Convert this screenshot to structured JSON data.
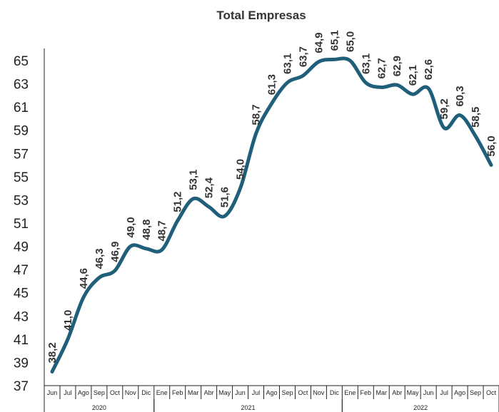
{
  "chart_data": {
    "type": "line",
    "title": "Total Empresas",
    "xlabel": "",
    "ylabel": "",
    "ylim": [
      37,
      65
    ],
    "yticks": [
      "37",
      "39",
      "41",
      "43",
      "45",
      "47",
      "49",
      "51",
      "53",
      "55",
      "57",
      "59",
      "61",
      "63",
      "65"
    ],
    "categories": [
      "Jun",
      "Jul",
      "Ago",
      "Sep",
      "Oct",
      "Nov",
      "Dic",
      "Ene",
      "Feb",
      "Mar",
      "Abr",
      "May",
      "Jun",
      "Jul",
      "Ago",
      "Sep",
      "Oct",
      "Nov",
      "Dic",
      "Ene",
      "Feb",
      "Mar",
      "Abr",
      "May",
      "Jun",
      "Jul",
      "Ago",
      "Sep",
      "Oct"
    ],
    "years": [
      {
        "label": "2020",
        "start": 0,
        "end": 6
      },
      {
        "label": "2021",
        "start": 7,
        "end": 18
      },
      {
        "label": "2022",
        "start": 19,
        "end": 28
      }
    ],
    "series": [
      {
        "values": [
          38.2,
          41.0,
          44.6,
          46.3,
          46.9,
          49.0,
          48.8,
          48.7,
          51.2,
          53.1,
          52.4,
          51.6,
          54.0,
          58.7,
          61.3,
          63.1,
          63.7,
          64.9,
          65.1,
          65.0,
          63.1,
          62.7,
          62.9,
          62.1,
          62.6,
          59.2,
          60.3,
          58.5,
          56.0
        ],
        "labels": [
          "38,2",
          "41,0",
          "44,6",
          "46,3",
          "46,9",
          "49,0",
          "48,8",
          "48,7",
          "51,2",
          "53,1",
          "52,4",
          "51,6",
          "54,0",
          "58,7",
          "61,3",
          "63,1",
          "63,7",
          "64,9",
          "65,1",
          "65,0",
          "63,1",
          "62,7",
          "62,9",
          "62,1",
          "62,6",
          "59,2",
          "60,3",
          "58,5",
          "56,0"
        ],
        "color": "#1f5f7a"
      }
    ],
    "grid": false,
    "legend": "none"
  }
}
